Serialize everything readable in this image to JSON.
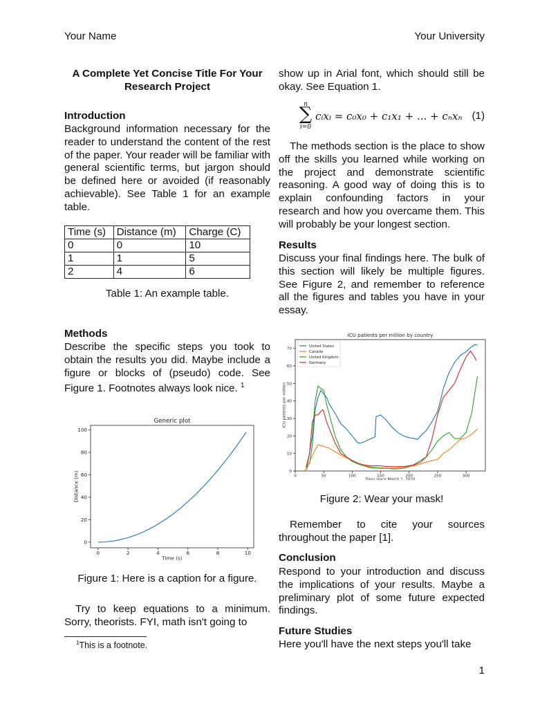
{
  "header": {
    "left": "Your Name",
    "right": "Your University"
  },
  "title": "A Complete Yet Concise Title For Your Research Project",
  "introduction": {
    "heading": "Introduction",
    "text": "Background information necessary for the reader to understand the content of the rest of the paper. Your reader will be familiar with general scientific terms, but jargon should be defined here or avoided (if reasonably achievable). See Table 1 for an example table."
  },
  "table": {
    "headers": [
      "Time (s)",
      "Distance (m)",
      "Charge (C)"
    ],
    "rows": [
      [
        "0",
        "0",
        "10"
      ],
      [
        "1",
        "1",
        "5"
      ],
      [
        "2",
        "4",
        "6"
      ]
    ],
    "caption": "Table 1: An example table."
  },
  "methods": {
    "heading": "Methods",
    "text": "Describe the specific steps you took to obtain the results you did. Maybe include a figure or blocks of (pseudo) code. See Figure 1. Footnotes always look nice.",
    "footnote_mark": "1"
  },
  "figure1": {
    "caption": "Figure 1: Here is a caption for a figure."
  },
  "left_bottom_text": "Try to keep equations to a minimum. Sorry, theorists. FYI, math isn't going to",
  "footnote": {
    "mark": "1",
    "text": "This is a footnote."
  },
  "right_top_text": "show up in Arial font, which should still be okay. See Equation 1.",
  "equation": {
    "sum_top": "n",
    "sum_bottom": "i=0",
    "body": "cᵢxᵢ = c₀x₀ + c₁x₁ + ... + cₙxₙ",
    "number": "(1)"
  },
  "methods_cont": "The methods section is the place to show off the skills you learned while working on the project and demonstrate scientific reasoning. A good way of doing this is to explain confounding factors in your research and how you overcame them. This will probably be your longest section.",
  "results": {
    "heading": "Results",
    "text": "Discuss your final findings here. The bulk of this section will likely be multiple figures. See Figure 2, and remember to reference all the figures and tables you have in your essay."
  },
  "figure2": {
    "caption": "Figure 2: Wear your mask!"
  },
  "cite_text": "Remember to cite your sources throughout the paper [1].",
  "conclusion": {
    "heading": "Conclusion",
    "text": "Respond to your introduction and discuss the implications of your results. Maybe a preliminary plot of some future expected findings."
  },
  "future": {
    "heading": "Future Studies",
    "text": "Here you'll have the next steps you'll take"
  },
  "page_number": "1",
  "chart_data": [
    {
      "type": "line",
      "title": "Generic plot",
      "xlabel": "Time (s)",
      "ylabel": "Distance (m)",
      "xlim": [
        -0.5,
        10.4
      ],
      "ylim": [
        -5,
        104
      ],
      "xticks": [
        0,
        2,
        4,
        6,
        8,
        10
      ],
      "yticks": [
        0,
        20,
        40,
        60,
        80,
        100
      ],
      "grid": false,
      "series": [
        {
          "color": "#1f77b4",
          "x": [
            0,
            0.5,
            1,
            1.5,
            2,
            2.5,
            3,
            3.5,
            4,
            4.5,
            5,
            5.5,
            6,
            6.5,
            7,
            7.5,
            8,
            8.5,
            9,
            9.5,
            9.9
          ],
          "y": [
            0,
            0.25,
            1,
            2.25,
            4,
            6.25,
            9,
            12.25,
            16,
            20.25,
            25,
            30.25,
            36,
            42.25,
            49,
            56.25,
            64,
            72.25,
            81,
            90.25,
            98.01
          ]
        }
      ]
    },
    {
      "type": "line",
      "title": "ICU patients per million by country",
      "xlabel": "Days since March 1, 2020",
      "ylabel": "ICU patients per million",
      "xlim": [
        0,
        334
      ],
      "ylim": [
        0,
        75
      ],
      "xticks": [
        0,
        50,
        100,
        150,
        200,
        250,
        300
      ],
      "yticks": [
        0,
        10,
        20,
        30,
        40,
        50,
        60,
        70
      ],
      "grid": false,
      "legend": "top-left",
      "series": [
        {
          "name": "United States",
          "color": "#1f77b4",
          "x": [
            25,
            30,
            35,
            40,
            45,
            50,
            55,
            60,
            70,
            80,
            90,
            100,
            110,
            115,
            120,
            130,
            140,
            142,
            150,
            160,
            170,
            180,
            190,
            200,
            210,
            215,
            220,
            230,
            240,
            250,
            255,
            260,
            270,
            280,
            290,
            300,
            310,
            315,
            320
          ],
          "y": [
            4,
            15,
            35,
            42,
            46,
            44,
            42,
            38,
            33,
            27,
            24,
            20,
            16,
            16,
            16.5,
            18,
            19.5,
            31,
            32,
            29,
            25,
            22,
            20,
            19,
            18.5,
            18,
            20,
            23,
            28,
            34,
            40,
            47,
            56,
            62,
            66,
            68,
            71,
            72,
            72
          ]
        },
        {
          "name": "Canada",
          "color": "#ff7f0e",
          "x": [
            15,
            20,
            30,
            40,
            45,
            50,
            60,
            70,
            80,
            90,
            100,
            110,
            120,
            130,
            140,
            150,
            160,
            170,
            180,
            190,
            200,
            210,
            220,
            230,
            240,
            250,
            260,
            270,
            280,
            290,
            300,
            310,
            320
          ],
          "y": [
            0,
            1,
            9,
            15,
            14.5,
            14,
            13,
            11,
            9,
            7.5,
            6,
            4.5,
            3.5,
            2.5,
            2,
            1.8,
            1.5,
            1.5,
            1.8,
            2.2,
            2.5,
            3,
            4,
            5,
            6,
            6.5,
            10,
            12,
            15,
            18,
            19,
            21,
            24
          ]
        },
        {
          "name": "United Kingdom",
          "color": "#2ca02c",
          "x": [
            20,
            30,
            35,
            40,
            45,
            50,
            55,
            60,
            70,
            80,
            90,
            100,
            110,
            120,
            130,
            140,
            150,
            160,
            170,
            180,
            190,
            200,
            210,
            220,
            230,
            240,
            250,
            260,
            270,
            280,
            290,
            300,
            310,
            320
          ],
          "y": [
            1,
            20,
            40,
            48.5,
            47,
            46,
            38,
            32,
            20,
            12,
            8,
            5.5,
            4,
            3,
            2,
            1.8,
            1.5,
            1.5,
            1.2,
            1.2,
            1.5,
            2.5,
            4,
            6,
            8,
            12,
            17,
            20,
            22,
            18.5,
            18.5,
            22,
            33,
            54
          ]
        },
        {
          "name": "Germany",
          "color": "#d62728",
          "x": [
            19,
            25,
            30,
            35,
            40,
            45,
            48,
            50,
            55,
            60,
            70,
            80,
            90,
            100,
            110,
            120,
            130,
            140,
            150,
            160,
            170,
            180,
            190,
            200,
            210,
            220,
            230,
            240,
            250,
            260,
            270,
            280,
            290,
            300,
            308,
            315,
            318
          ],
          "y": [
            2,
            10,
            28,
            32,
            32,
            34,
            35,
            34,
            28,
            24,
            16,
            10,
            8,
            6,
            4.5,
            3.5,
            3,
            3,
            3,
            2.5,
            2.5,
            2.5,
            2.5,
            3,
            3.5,
            5,
            8,
            18,
            32,
            42,
            46,
            50,
            58,
            65,
            68.5,
            65,
            63
          ]
        }
      ]
    }
  ]
}
